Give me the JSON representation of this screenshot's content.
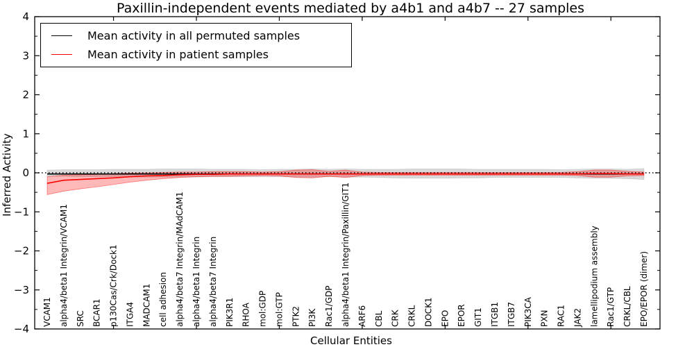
{
  "figure": {
    "title": "Paxillin-independent events mediated by a4b1 and a4b7 -- 27 samples",
    "xlabel": "Cellular Entities",
    "ylabel": "Inferred Activity"
  },
  "legend": {
    "entries": [
      {
        "label": "Mean activity in all permuted samples",
        "color": "#000000"
      },
      {
        "label": "Mean activity in patient samples",
        "color": "#ff0000"
      }
    ],
    "position": "upper left"
  },
  "chart_data": {
    "type": "line",
    "title": "Paxillin-independent events mediated by a4b1 and a4b7 -- 27 samples",
    "xlabel": "Cellular Entities",
    "ylabel": "Inferred Activity",
    "ylim": [
      -4,
      4
    ],
    "yticks": [
      -4,
      -3,
      -2,
      -1,
      0,
      1,
      2,
      3,
      4
    ],
    "y_minor_step": 0.5,
    "x_major_tick_values": [
      5,
      10,
      15,
      20,
      25,
      30,
      35
    ],
    "grid": false,
    "zero_line": {
      "style": "dotted",
      "color": "#000000",
      "y": 0
    },
    "legend_position": "upper left",
    "categories": [
      "VCAM1",
      "alpha4/beta1 Integrin/VCAM1",
      "SRC",
      "BCAR1",
      "p130Cas/Crk/Dock1",
      "ITGA4",
      "MADCAM1",
      "cell adhesion",
      "alpha4/beta7 Integrin/MAdCAM1",
      "alpha4/beta1 Integrin",
      "alpha4/beta7 Integrin",
      "PIK3R1",
      "RHOA",
      "mol:GDP",
      "mol:GTP",
      "PTK2",
      "PI3K",
      "Rac1/GDP",
      "alpha4/beta1 Integrin/Paxillin/GIT1",
      "ARF6",
      "CBL",
      "CRK",
      "CRKL",
      "DOCK1",
      "EPO",
      "EPOR",
      "GIT1",
      "ITGB1",
      "ITGB7",
      "PIK3CA",
      "PXN",
      "RAC1",
      "JAK2",
      "lamellipodium assembly",
      "Rac1/GTP",
      "CRKL/CBL",
      "EPO/EPOR (dimer)"
    ],
    "series": [
      {
        "name": "Mean activity in all permuted samples",
        "color": "#000000",
        "band_color": "rgba(0,0,0,0.15)",
        "values": [
          -0.03,
          -0.03,
          -0.03,
          -0.03,
          -0.03,
          -0.03,
          -0.03,
          -0.03,
          -0.03,
          -0.03,
          -0.03,
          -0.03,
          -0.03,
          -0.03,
          -0.03,
          -0.03,
          -0.03,
          -0.03,
          -0.03,
          -0.03,
          -0.03,
          -0.03,
          -0.03,
          -0.03,
          -0.03,
          -0.03,
          -0.03,
          -0.03,
          -0.03,
          -0.03,
          -0.03,
          -0.03,
          -0.03,
          -0.03,
          -0.03,
          -0.03,
          -0.03
        ],
        "band_upper": [
          0.07,
          0.08,
          0.08,
          0.08,
          0.09,
          0.09,
          0.09,
          0.1,
          0.1,
          0.1,
          0.09,
          0.09,
          0.09,
          0.08,
          0.09,
          0.09,
          0.1,
          0.09,
          0.1,
          0.09,
          0.09,
          0.09,
          0.1,
          0.1,
          0.1,
          0.1,
          0.09,
          0.09,
          0.09,
          0.09,
          0.09,
          0.08,
          0.09,
          0.1,
          0.1,
          0.09,
          0.11
        ],
        "band_lower": [
          -0.09,
          -0.09,
          -0.1,
          -0.1,
          -0.1,
          -0.11,
          -0.11,
          -0.11,
          -0.11,
          -0.11,
          -0.1,
          -0.1,
          -0.1,
          -0.1,
          -0.1,
          -0.11,
          -0.11,
          -0.1,
          -0.11,
          -0.11,
          -0.12,
          -0.13,
          -0.14,
          -0.14,
          -0.14,
          -0.13,
          -0.13,
          -0.12,
          -0.12,
          -0.12,
          -0.12,
          -0.12,
          -0.13,
          -0.14,
          -0.14,
          -0.15,
          -0.17
        ]
      },
      {
        "name": "Mean activity in patient samples",
        "color": "#ff0000",
        "band_color": "rgba(255,0,0,0.28)",
        "values": [
          -0.27,
          -0.19,
          -0.17,
          -0.15,
          -0.13,
          -0.1,
          -0.08,
          -0.07,
          -0.05,
          -0.04,
          -0.04,
          -0.03,
          -0.03,
          -0.03,
          -0.03,
          -0.03,
          -0.03,
          -0.03,
          -0.03,
          -0.03,
          -0.03,
          -0.03,
          -0.03,
          -0.03,
          -0.03,
          -0.03,
          -0.03,
          -0.03,
          -0.03,
          -0.03,
          -0.03,
          -0.03,
          -0.03,
          -0.02,
          -0.02,
          -0.03,
          -0.03
        ],
        "band_upper": [
          -0.1,
          -0.06,
          -0.05,
          -0.04,
          -0.02,
          -0.01,
          0.0,
          0.01,
          0.02,
          0.02,
          0.03,
          0.03,
          0.03,
          0.02,
          0.03,
          0.07,
          0.08,
          0.04,
          0.07,
          0.02,
          0.01,
          0.01,
          0.01,
          0.01,
          0.01,
          0.01,
          0.01,
          0.01,
          0.01,
          0.01,
          0.01,
          0.01,
          0.03,
          0.07,
          0.07,
          0.04,
          0.02
        ],
        "band_lower": [
          -0.56,
          -0.47,
          -0.41,
          -0.36,
          -0.3,
          -0.24,
          -0.19,
          -0.15,
          -0.12,
          -0.1,
          -0.09,
          -0.09,
          -0.08,
          -0.07,
          -0.08,
          -0.12,
          -0.13,
          -0.09,
          -0.12,
          -0.07,
          -0.06,
          -0.06,
          -0.06,
          -0.06,
          -0.06,
          -0.06,
          -0.06,
          -0.06,
          -0.06,
          -0.06,
          -0.06,
          -0.06,
          -0.07,
          -0.11,
          -0.11,
          -0.08,
          -0.07
        ]
      }
    ]
  }
}
